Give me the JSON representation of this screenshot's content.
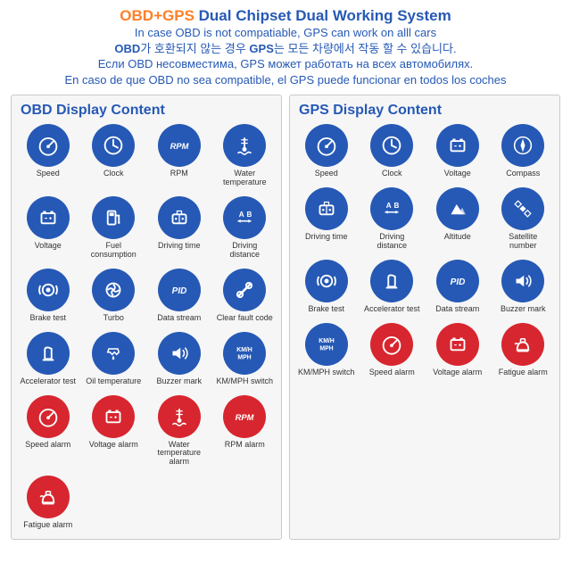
{
  "colors": {
    "orange": "#ff7f27",
    "blue_text": "#2659b5",
    "icon_blue": "#2659b5",
    "icon_red": "#d7262f",
    "icon_fg": "#ffffff",
    "panel_bg": "#f6f6f6",
    "panel_border": "#c9c9c9",
    "label": "#333333",
    "page_bg": "#ffffff"
  },
  "header": {
    "title_left": "OBD+GPS",
    "title_right": " Dual Chipset Dual Working System",
    "line_en": "In case OBD is not compatiable, GPS can work on alll cars",
    "line_ko_pre": "OBD",
    "line_ko_mid": "가 호환되지 않는 경우 ",
    "line_ko_gps": "GPS",
    "line_ko_post": "는 모든 차량에서 작동 할 수 있습니다.",
    "line_ru": "Если OBD несовместима, GPS может работать на всех автомобилях.",
    "line_es": "En caso de que OBD no sea compatible, el GPS puede funcionar en todos los coches"
  },
  "panels": {
    "obd": {
      "title": "OBD Display Content",
      "items": [
        {
          "icon": "speed",
          "label": "Speed",
          "color": "blue"
        },
        {
          "icon": "clock",
          "label": "Clock",
          "color": "blue"
        },
        {
          "icon": "rpm",
          "label": "RPM",
          "color": "blue"
        },
        {
          "icon": "watertemp",
          "label": "Water temperature",
          "color": "blue"
        },
        {
          "icon": "voltage",
          "label": "Voltage",
          "color": "blue"
        },
        {
          "icon": "fuel",
          "label": "Fuel consumption",
          "color": "blue"
        },
        {
          "icon": "drivetime",
          "label": "Driving time",
          "color": "blue"
        },
        {
          "icon": "distance",
          "label": "Driving distance",
          "color": "blue"
        },
        {
          "icon": "brake",
          "label": "Brake test",
          "color": "blue"
        },
        {
          "icon": "turbo",
          "label": "Turbo",
          "color": "blue"
        },
        {
          "icon": "pid",
          "label": "Data stream",
          "color": "blue"
        },
        {
          "icon": "wrench",
          "label": "Clear fault code",
          "color": "blue"
        },
        {
          "icon": "accel",
          "label": "Accelerator test",
          "color": "blue"
        },
        {
          "icon": "oiltemp",
          "label": "Oil temperature",
          "color": "blue"
        },
        {
          "icon": "buzzer",
          "label": "Buzzer mark",
          "color": "blue"
        },
        {
          "icon": "kmmph",
          "label": "KM/MPH switch",
          "color": "blue"
        },
        {
          "icon": "speed",
          "label": "Speed alarm",
          "color": "red"
        },
        {
          "icon": "voltage",
          "label": "Voltage alarm",
          "color": "red"
        },
        {
          "icon": "watertemp",
          "label": "Water temperature alarm",
          "color": "red"
        },
        {
          "icon": "rpm",
          "label": "RPM alarm",
          "color": "red"
        },
        {
          "icon": "fatigue",
          "label": "Fatigue alarm",
          "color": "red"
        }
      ]
    },
    "gps": {
      "title": "GPS Display Content",
      "items": [
        {
          "icon": "speed",
          "label": "Speed",
          "color": "blue"
        },
        {
          "icon": "clock",
          "label": "Clock",
          "color": "blue"
        },
        {
          "icon": "voltage",
          "label": "Voltage",
          "color": "blue"
        },
        {
          "icon": "compass",
          "label": "Compass",
          "color": "blue"
        },
        {
          "icon": "drivetime",
          "label": "Driving time",
          "color": "blue"
        },
        {
          "icon": "distance",
          "label": "Driving distance",
          "color": "blue"
        },
        {
          "icon": "altitude",
          "label": "Altitude",
          "color": "blue"
        },
        {
          "icon": "satellite",
          "label": "Satellite number",
          "color": "blue"
        },
        {
          "icon": "brake",
          "label": "Brake test",
          "color": "blue"
        },
        {
          "icon": "accel",
          "label": "Accelerator test",
          "color": "blue"
        },
        {
          "icon": "pid",
          "label": "Data stream",
          "color": "blue"
        },
        {
          "icon": "buzzer",
          "label": "Buzzer mark",
          "color": "blue"
        },
        {
          "icon": "kmmph",
          "label": "KM/MPH switch",
          "color": "blue"
        },
        {
          "icon": "speed",
          "label": "Speed alarm",
          "color": "red"
        },
        {
          "icon": "voltage",
          "label": "Voltage alarm",
          "color": "red"
        },
        {
          "icon": "fatigue",
          "label": "Fatigue alarm",
          "color": "red"
        }
      ]
    }
  }
}
